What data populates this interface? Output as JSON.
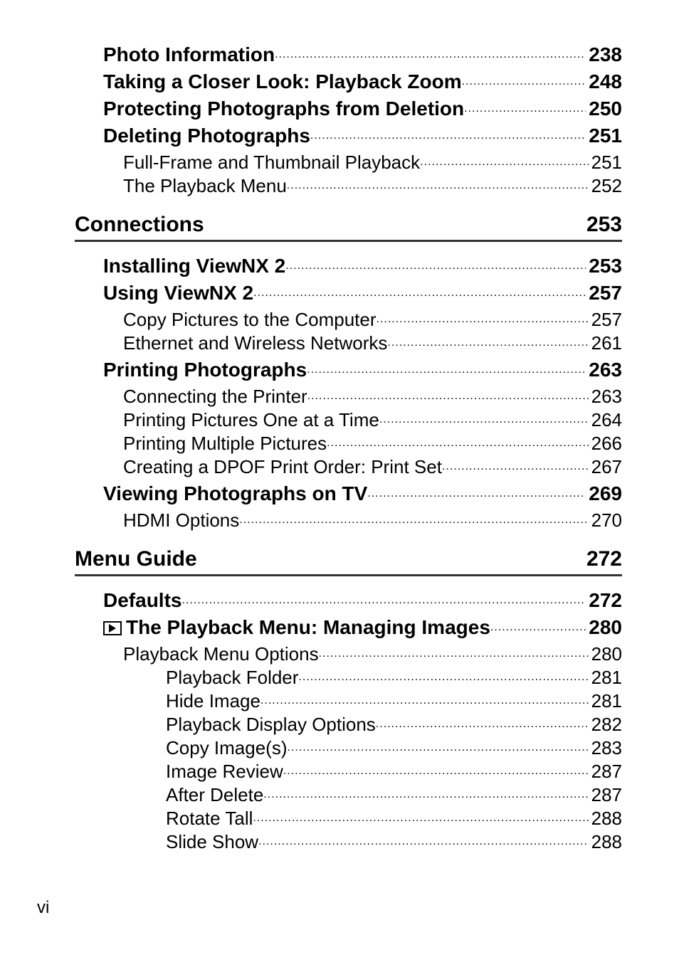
{
  "page_number": "vi",
  "sections": {
    "connections": {
      "title": "Connections",
      "page": "253"
    },
    "menu_guide": {
      "title": "Menu Guide",
      "page": "272"
    }
  },
  "entries": [
    {
      "level": 0,
      "label": "Photo Information",
      "page": "238"
    },
    {
      "level": 0,
      "label": "Taking a Closer Look: Playback Zoom",
      "page": "248"
    },
    {
      "level": 0,
      "label": "Protecting Photographs from Deletion",
      "page": "250"
    },
    {
      "level": 0,
      "label": "Deleting Photographs",
      "page": "251"
    },
    {
      "level": 1,
      "label": "Full-Frame and Thumbnail Playback",
      "page": "251"
    },
    {
      "level": 1,
      "label": "The Playback Menu",
      "page": "252"
    },
    {
      "section": "connections"
    },
    {
      "level": 0,
      "label": "Installing ViewNX 2",
      "page": "253"
    },
    {
      "level": 0,
      "label": "Using ViewNX 2",
      "page": "257"
    },
    {
      "level": 1,
      "label": "Copy Pictures to the Computer",
      "page": "257"
    },
    {
      "level": 1,
      "label": "Ethernet and Wireless Networks",
      "page": "261"
    },
    {
      "level": 0,
      "label": "Printing Photographs",
      "page": "263"
    },
    {
      "level": 1,
      "label": "Connecting the Printer",
      "page": "263"
    },
    {
      "level": 1,
      "label": "Printing Pictures One at a Time",
      "page": "264"
    },
    {
      "level": 1,
      "label": "Printing Multiple Pictures",
      "page": "266"
    },
    {
      "level": 1,
      "label": "Creating a DPOF Print Order: Print Set",
      "page": "267"
    },
    {
      "level": 0,
      "label": "Viewing Photographs on TV",
      "page": "269"
    },
    {
      "level": 1,
      "label": "HDMI Options",
      "page": "270"
    },
    {
      "section": "menu_guide"
    },
    {
      "level": 0,
      "label": "Defaults",
      "page": "272"
    },
    {
      "level": 0,
      "icon": "playback",
      "label": "The Playback Menu: Managing Images",
      "page": "280"
    },
    {
      "level": 1,
      "label": "Playback Menu Options",
      "page": "280"
    },
    {
      "level": 2,
      "label": "Playback Folder",
      "page": "281"
    },
    {
      "level": 2,
      "label": "Hide Image",
      "page": "281"
    },
    {
      "level": 2,
      "label": "Playback Display Options",
      "page": "282"
    },
    {
      "level": 2,
      "label": "Copy Image(s)",
      "page": "283"
    },
    {
      "level": 2,
      "label": "Image Review",
      "page": "287"
    },
    {
      "level": 2,
      "label": "After Delete",
      "page": "287"
    },
    {
      "level": 2,
      "label": "Rotate Tall",
      "page": "288"
    },
    {
      "level": 2,
      "label": "Slide Show",
      "page": "288"
    }
  ]
}
